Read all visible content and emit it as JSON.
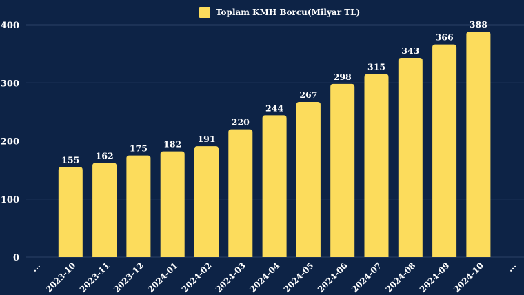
{
  "colors": {
    "background": "#0d2346",
    "bar": "#fcdc5c",
    "grid": "#2c4266",
    "text": "#ffffff"
  },
  "chart_data": {
    "type": "bar",
    "title": "",
    "xlabel": "",
    "ylabel": "",
    "legend": "top-center",
    "grid": true,
    "ylim": [
      0,
      400
    ],
    "yticks": [
      0,
      100,
      200,
      300,
      400
    ],
    "x_edge_labels": [
      "...",
      "..."
    ],
    "categories": [
      "2023-10",
      "2023-11",
      "2023-12",
      "2024-01",
      "2024-02",
      "2024-03",
      "2024-04",
      "2024-05",
      "2024-06",
      "2024-07",
      "2024-08",
      "2024-09",
      "2024-10"
    ],
    "series": [
      {
        "name": "Toplam KMH Borcu(Milyar TL)",
        "values": [
          155,
          162,
          175,
          182,
          191,
          220,
          244,
          267,
          298,
          315,
          343,
          366,
          388
        ]
      }
    ]
  }
}
